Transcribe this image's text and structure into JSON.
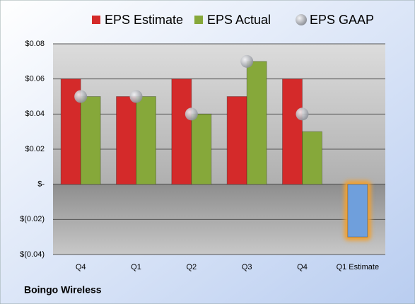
{
  "chart_data": {
    "type": "bar",
    "categories": [
      "Q4",
      "Q1",
      "Q2",
      "Q3",
      "Q4",
      "Q1 Estimate"
    ],
    "series": [
      {
        "name": "EPS Estimate",
        "color": "#d42a2a",
        "values": [
          0.06,
          0.05,
          0.06,
          0.05,
          0.06,
          -0.03
        ]
      },
      {
        "name": "EPS Actual",
        "color": "#86a83a",
        "values": [
          0.05,
          0.05,
          0.04,
          0.07,
          0.03,
          null
        ]
      },
      {
        "name": "EPS GAAP",
        "color": "#b4b8bf",
        "marker": "circle",
        "values": [
          0.05,
          0.05,
          0.04,
          0.07,
          0.04,
          null
        ]
      }
    ],
    "highlight": {
      "series": 0,
      "index": 5,
      "color": "#6f9fdc",
      "glow": "#f0a030"
    },
    "ylim": [
      -0.04,
      0.08
    ],
    "yticks": [
      {
        "value": -0.04,
        "label": "$(0.04)"
      },
      {
        "value": -0.02,
        "label": "$(0.02)"
      },
      {
        "value": 0,
        "label": "$-"
      },
      {
        "value": 0.02,
        "label": "$0.02"
      },
      {
        "value": 0.04,
        "label": "$0.04"
      },
      {
        "value": 0.06,
        "label": "$0.06"
      },
      {
        "value": 0.08,
        "label": "$0.08"
      }
    ],
    "grid": true,
    "footer": "Boingo Wireless"
  }
}
